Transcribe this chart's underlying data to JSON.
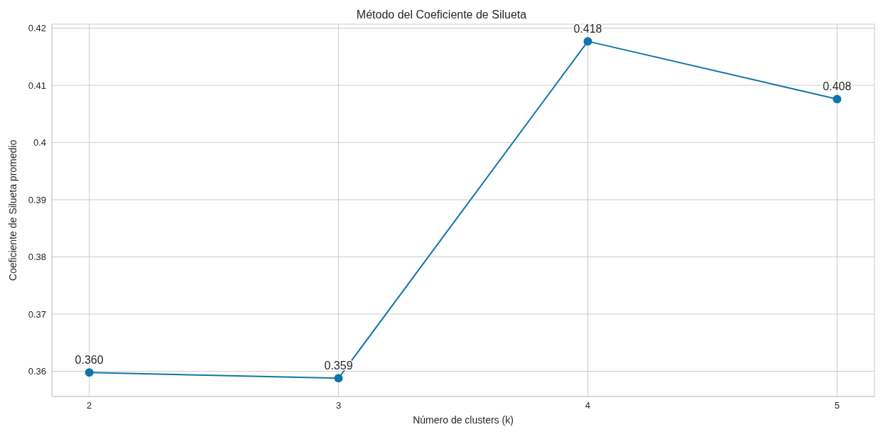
{
  "chart_data": {
    "type": "line",
    "title": "Método del Coeficiente de Silueta",
    "xlabel": "Número de clusters (k)",
    "ylabel": "Coeficiente de Silueta promedio",
    "x": [
      2,
      3,
      4,
      5
    ],
    "series": [
      {
        "color": "#1274a8",
        "values": [
          0.3598,
          0.3588,
          0.4177,
          0.4076
        ],
        "value_labels": [
          "0.360",
          "0.359",
          "0.418",
          "0.408"
        ]
      }
    ],
    "xlim": [
      1.85,
      5.15
    ],
    "xticks": [
      2,
      3,
      4,
      5
    ],
    "ylim": [
      0.3556,
      0.4207
    ],
    "yticks": [
      0.36,
      0.37,
      0.38,
      0.39,
      0.4,
      0.41,
      0.42
    ],
    "grid": true,
    "marker": "circle",
    "line_style": "solid"
  }
}
